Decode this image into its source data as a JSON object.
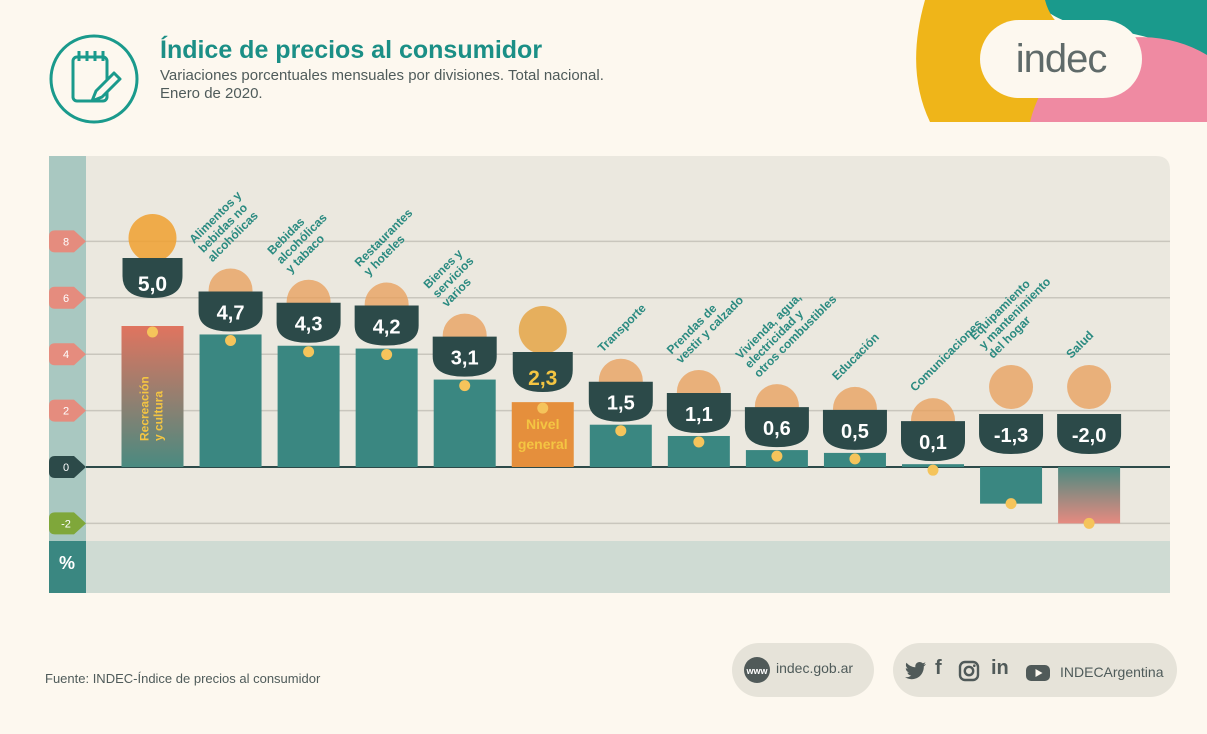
{
  "header": {
    "title": "Índice de precios al consumidor",
    "subtitle_line1": "Variaciones porcentuales mensuales por divisiones. Total nacional.",
    "subtitle_line2": "Enero de 2020."
  },
  "logo": {
    "text": "indec",
    "icon": "notepad-pencil-icon"
  },
  "chart_data": {
    "type": "bar",
    "unit_label": "%",
    "y_ticks": [
      "8",
      "6",
      "4",
      "2",
      "0",
      "-2"
    ],
    "ylim": [
      -2,
      8
    ],
    "grid": true,
    "categories": [
      "Recreación y cultura",
      "Alimentos y bebidas no alcohólicas",
      "Bebidas alcohólicas y tabaco",
      "Restaurantes y hoteles",
      "Bienes y servicios varios",
      "Nivel general",
      "Transporte",
      "Prendas de vestir y calzado",
      "Vivienda, agua, electricidad y otros combustibles",
      "Educación",
      "Comunicaciones",
      "Equipamiento y mantenimiento del hogar",
      "Salud"
    ],
    "label_lines": [
      [
        "Recreación",
        "y cultura"
      ],
      [
        "Alimentos y",
        "bebidas no",
        "alcohólicas"
      ],
      [
        "Bebidas",
        "alcohólicas",
        "y tabaco"
      ],
      [
        "Restaurantes",
        "y hoteles"
      ],
      [
        "Bienes y",
        "servicios",
        "varios"
      ],
      [
        "Nivel",
        "general"
      ],
      [
        "Transporte"
      ],
      [
        "Prendas de",
        "vestir y calzado"
      ],
      [
        "Vivienda, agua,",
        "electricidad y",
        "otros combustibles"
      ],
      [
        "Educación"
      ],
      [
        "Comunicaciones"
      ],
      [
        "Equipamiento",
        "y mantenimiento",
        "del hogar"
      ],
      [
        "Salud"
      ]
    ],
    "values": [
      5.0,
      4.7,
      4.3,
      4.2,
      3.1,
      2.3,
      1.5,
      1.1,
      0.6,
      0.5,
      0.1,
      -1.3,
      -2.0
    ],
    "value_labels": [
      "5,0",
      "4,7",
      "4,3",
      "4,2",
      "3,1",
      "2,3",
      "1,5",
      "1,1",
      "0,6",
      "0,5",
      "0,1",
      "-1,3",
      "-2,0"
    ],
    "icons": [
      "sun-basket-icon",
      "roast-chicken-icon",
      "bottle-glass-icon",
      "plate-cutlery-icon",
      "comb-scissors-icon",
      "shopping-bag-icon",
      "sube-card-icon",
      "tshirt-shoe-icon",
      "bulb-faucet-icon",
      "book-icon",
      "phone-icon",
      "washing-machine-icon",
      "first-aid-kit-icon"
    ],
    "colors": {
      "bar": "#3a8781",
      "recreation_top": "#e0745f",
      "recreation_bottom": "#4a8a80",
      "general": "#e58f3c",
      "general_text": "#f4c542",
      "badge": "#2c4a49",
      "dot": "#f5c45b",
      "label": "#2a8a80",
      "health_top": "#4a8a80",
      "health_bottom": "#e68a80"
    }
  },
  "footer": {
    "source": "Fuente: INDEC-Índice de precios al consumidor",
    "web": "indec.gob.ar",
    "web_badge": "www",
    "social_handle": "INDECArgentina",
    "social_icons": [
      "twitter-icon",
      "facebook-icon",
      "instagram-icon",
      "linkedin-icon",
      "youtube-icon"
    ],
    "social_glyphs": [
      "f",
      "in"
    ]
  }
}
